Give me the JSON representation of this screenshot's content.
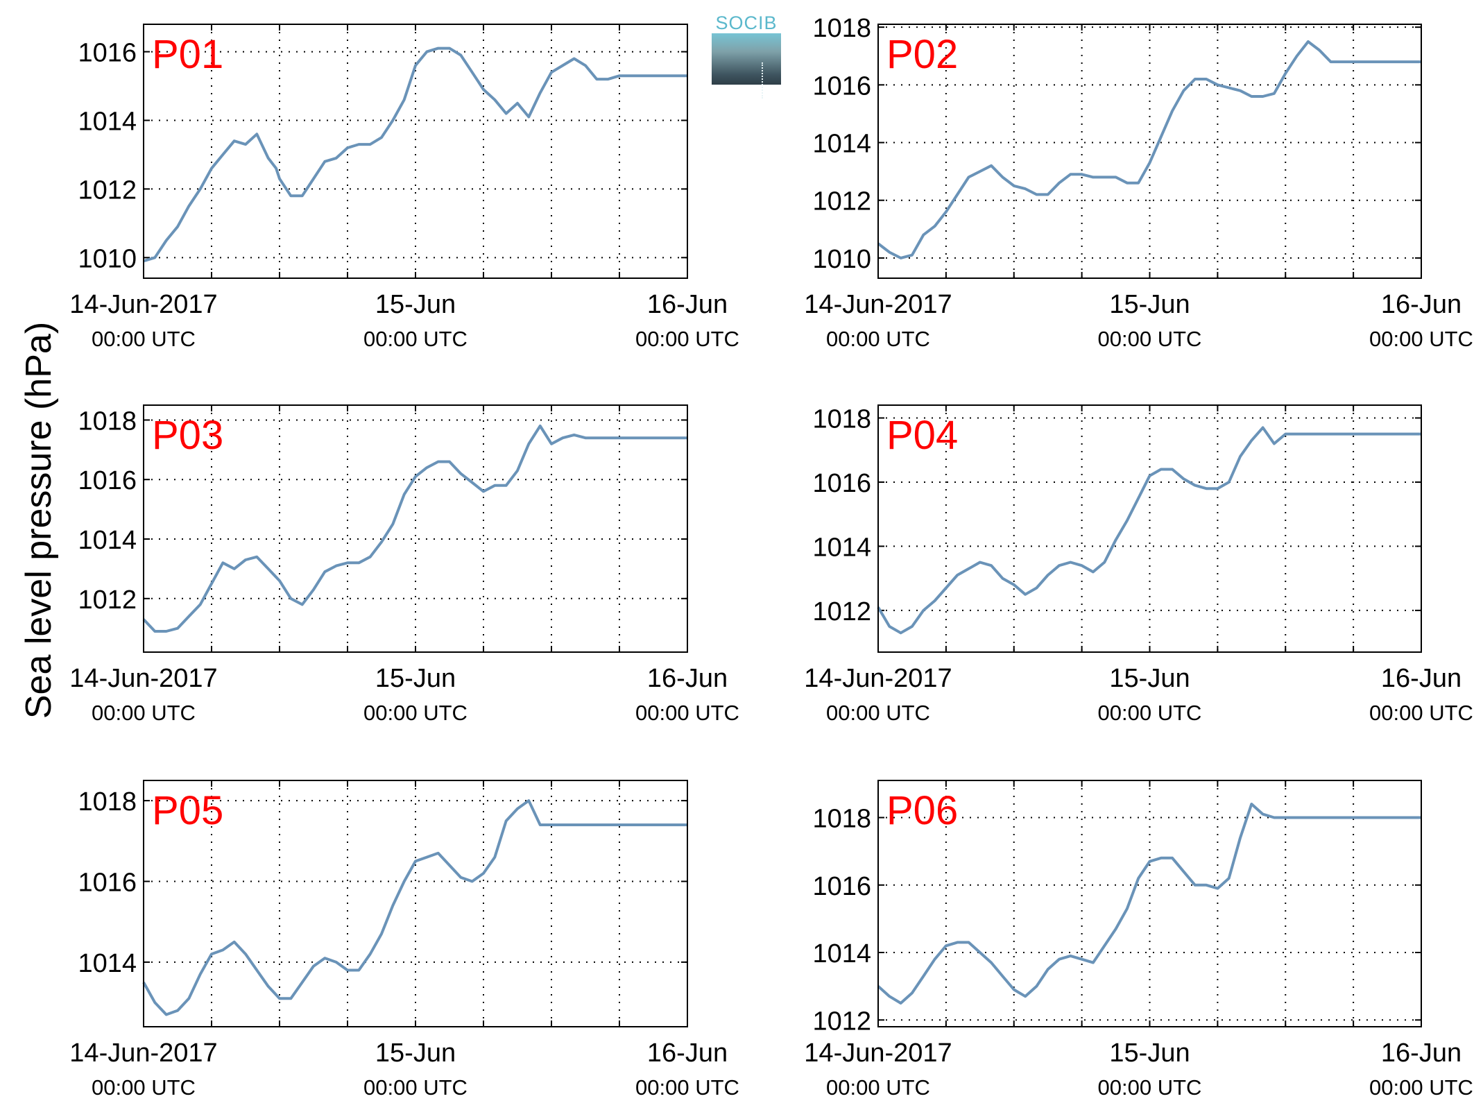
{
  "figure": {
    "ylabel": "Sea level pressure (hPa)",
    "logo_text": "SOCIB",
    "line_color": "#6a93b8",
    "label_color": "#ff0000"
  },
  "chart_data": [
    {
      "type": "line",
      "title": "P01",
      "ylim": [
        1009.4,
        1016.8
      ],
      "yticks": [
        1010,
        1012,
        1014,
        1016
      ],
      "x_range_hours": [
        0,
        48
      ],
      "grid": true,
      "xticks": [
        {
          "top": "14-Jun-2017",
          "bottom": "00:00 UTC"
        },
        {
          "top": "15-Jun",
          "bottom": "00:00 UTC"
        },
        {
          "top": "16-Jun",
          "bottom": "00:00 UTC"
        }
      ],
      "series": [
        {
          "x": [
            0,
            1,
            2,
            3,
            4,
            5,
            6,
            7,
            8,
            9,
            10,
            11,
            11.7,
            12,
            13,
            14,
            15,
            16,
            17,
            18,
            19,
            20,
            21,
            22,
            23,
            24,
            25,
            26,
            27,
            28,
            29,
            30,
            31,
            32,
            33,
            34,
            35,
            36,
            37,
            38,
            39,
            40,
            41,
            42,
            43,
            44,
            45,
            46,
            47,
            48
          ],
          "y": [
            1009.9,
            1010.0,
            1010.5,
            1010.9,
            1011.5,
            1012.0,
            1012.6,
            1013.0,
            1013.4,
            1013.3,
            1013.6,
            1012.9,
            1012.6,
            1012.3,
            1011.8,
            1011.8,
            1012.3,
            1012.8,
            1012.9,
            1013.2,
            1013.3,
            1013.3,
            1013.5,
            1014.0,
            1014.6,
            1015.6,
            1016.0,
            1016.1,
            1016.1,
            1015.9,
            1015.4,
            1014.9,
            1014.6,
            1014.2,
            1014.5,
            1014.1,
            1014.8,
            1015.4,
            1015.6,
            1015.8,
            1015.6,
            1015.2,
            1015.2,
            1015.3,
            1015.3,
            1015.3,
            1015.3,
            1015.3,
            1015.3,
            1015.3
          ]
        }
      ]
    },
    {
      "type": "line",
      "title": "P02",
      "ylim": [
        1009.3,
        1018.1
      ],
      "yticks": [
        1010,
        1012,
        1014,
        1016,
        1018
      ],
      "x_range_hours": [
        0,
        48
      ],
      "grid": true,
      "xticks": [
        {
          "top": "14-Jun-2017",
          "bottom": "00:00 UTC"
        },
        {
          "top": "15-Jun",
          "bottom": "00:00 UTC"
        },
        {
          "top": "16-Jun",
          "bottom": "00:00 UTC"
        }
      ],
      "series": [
        {
          "x": [
            0,
            1,
            2,
            3,
            4,
            5,
            6,
            7,
            8,
            9,
            10,
            11,
            12,
            13,
            14,
            15,
            16,
            17,
            18,
            19,
            20,
            21,
            22,
            23,
            24,
            25,
            26,
            27,
            28,
            29,
            30,
            31,
            32,
            33,
            34,
            35,
            36,
            37,
            38,
            39,
            40,
            41,
            42,
            43,
            44,
            45,
            46,
            47,
            48
          ],
          "y": [
            1010.5,
            1010.2,
            1010.0,
            1010.1,
            1010.8,
            1011.1,
            1011.6,
            1012.2,
            1012.8,
            1013.0,
            1013.2,
            1012.8,
            1012.5,
            1012.4,
            1012.2,
            1012.2,
            1012.6,
            1012.9,
            1012.9,
            1012.8,
            1012.8,
            1012.8,
            1012.6,
            1012.6,
            1013.3,
            1014.2,
            1015.1,
            1015.8,
            1016.2,
            1016.2,
            1016.0,
            1015.9,
            1015.8,
            1015.6,
            1015.6,
            1015.7,
            1016.4,
            1017.0,
            1017.5,
            1017.2,
            1016.8,
            1016.8,
            1016.8,
            1016.8,
            1016.8,
            1016.8,
            1016.8,
            1016.8,
            1016.8
          ]
        }
      ]
    },
    {
      "type": "line",
      "title": "P03",
      "ylim": [
        1010.2,
        1018.5
      ],
      "yticks": [
        1012,
        1014,
        1016,
        1018
      ],
      "x_range_hours": [
        0,
        48
      ],
      "grid": true,
      "xticks": [
        {
          "top": "14-Jun-2017",
          "bottom": "00:00 UTC"
        },
        {
          "top": "15-Jun",
          "bottom": "00:00 UTC"
        },
        {
          "top": "16-Jun",
          "bottom": "00:00 UTC"
        }
      ],
      "series": [
        {
          "x": [
            0,
            1,
            2,
            3,
            4,
            5,
            6,
            7,
            8,
            9,
            10,
            11,
            12,
            13,
            14,
            15,
            16,
            17,
            18,
            19,
            20,
            21,
            22,
            23,
            24,
            25,
            26,
            27,
            28,
            29,
            30,
            31,
            32,
            33,
            34,
            35,
            36,
            37,
            38,
            39,
            40,
            41,
            42,
            43,
            44,
            45,
            46,
            47,
            48
          ],
          "y": [
            1011.3,
            1010.9,
            1010.9,
            1011.0,
            1011.4,
            1011.8,
            1012.5,
            1013.2,
            1013.0,
            1013.3,
            1013.4,
            1013.0,
            1012.6,
            1012.0,
            1011.8,
            1012.3,
            1012.9,
            1013.1,
            1013.2,
            1013.2,
            1013.4,
            1013.9,
            1014.5,
            1015.5,
            1016.1,
            1016.4,
            1016.6,
            1016.6,
            1016.2,
            1015.9,
            1015.6,
            1015.8,
            1015.8,
            1016.3,
            1017.2,
            1017.8,
            1017.2,
            1017.4,
            1017.5,
            1017.4,
            1017.4,
            1017.4,
            1017.4,
            1017.4,
            1017.4,
            1017.4,
            1017.4,
            1017.4,
            1017.4
          ]
        }
      ]
    },
    {
      "type": "line",
      "title": "P04",
      "ylim": [
        1010.7,
        1018.4
      ],
      "yticks": [
        1012,
        1014,
        1016,
        1018
      ],
      "x_range_hours": [
        0,
        48
      ],
      "grid": true,
      "xticks": [
        {
          "top": "14-Jun-2017",
          "bottom": "00:00 UTC"
        },
        {
          "top": "15-Jun",
          "bottom": "00:00 UTC"
        },
        {
          "top": "16-Jun",
          "bottom": "00:00 UTC"
        }
      ],
      "series": [
        {
          "x": [
            0,
            1,
            2,
            3,
            4,
            5,
            6,
            7,
            8,
            9,
            10,
            11,
            12,
            13,
            14,
            15,
            16,
            17,
            18,
            19,
            20,
            21,
            22,
            23,
            24,
            25,
            26,
            27,
            28,
            29,
            30,
            31,
            32,
            33,
            34,
            35,
            36,
            37,
            38,
            39,
            40,
            41,
            42,
            43,
            44,
            45,
            46,
            47,
            48
          ],
          "y": [
            1012.1,
            1011.5,
            1011.3,
            1011.5,
            1012.0,
            1012.3,
            1012.7,
            1013.1,
            1013.3,
            1013.5,
            1013.4,
            1013.0,
            1012.8,
            1012.5,
            1012.7,
            1013.1,
            1013.4,
            1013.5,
            1013.4,
            1013.2,
            1013.5,
            1014.2,
            1014.8,
            1015.5,
            1016.2,
            1016.4,
            1016.4,
            1016.1,
            1015.9,
            1015.8,
            1015.8,
            1016.0,
            1016.8,
            1017.3,
            1017.7,
            1017.2,
            1017.5,
            1017.5,
            1017.5,
            1017.5,
            1017.5,
            1017.5,
            1017.5,
            1017.5,
            1017.5,
            1017.5,
            1017.5,
            1017.5,
            1017.5
          ]
        }
      ]
    },
    {
      "type": "line",
      "title": "P05",
      "ylim": [
        1012.4,
        1018.5
      ],
      "yticks": [
        1014,
        1016,
        1018
      ],
      "x_range_hours": [
        0,
        48
      ],
      "grid": true,
      "xticks": [
        {
          "top": "14-Jun-2017",
          "bottom": "00:00 UTC"
        },
        {
          "top": "15-Jun",
          "bottom": "00:00 UTC"
        },
        {
          "top": "16-Jun",
          "bottom": "00:00 UTC"
        }
      ],
      "series": [
        {
          "x": [
            0,
            1,
            2,
            3,
            4,
            5,
            6,
            7,
            8,
            9,
            10,
            11,
            12,
            13,
            14,
            15,
            16,
            17,
            18,
            19,
            20,
            21,
            22,
            23,
            24,
            25,
            26,
            27,
            28,
            29,
            30,
            31,
            32,
            33,
            34,
            35,
            36,
            37,
            38,
            39,
            40,
            41,
            42,
            43,
            44,
            45,
            46,
            47,
            48
          ],
          "y": [
            1013.5,
            1013.0,
            1012.7,
            1012.8,
            1013.1,
            1013.7,
            1014.2,
            1014.3,
            1014.5,
            1014.2,
            1013.8,
            1013.4,
            1013.1,
            1013.1,
            1013.5,
            1013.9,
            1014.1,
            1014.0,
            1013.8,
            1013.8,
            1014.2,
            1014.7,
            1015.4,
            1016.0,
            1016.5,
            1016.6,
            1016.7,
            1016.4,
            1016.1,
            1016.0,
            1016.2,
            1016.6,
            1017.5,
            1017.8,
            1018.0,
            1017.4,
            1017.4,
            1017.4,
            1017.4,
            1017.4,
            1017.4,
            1017.4,
            1017.4,
            1017.4,
            1017.4,
            1017.4,
            1017.4,
            1017.4,
            1017.4
          ]
        }
      ]
    },
    {
      "type": "line",
      "title": "P06",
      "ylim": [
        1011.8,
        1019.1
      ],
      "yticks": [
        1012,
        1014,
        1016,
        1018
      ],
      "x_range_hours": [
        0,
        48
      ],
      "grid": true,
      "xticks": [
        {
          "top": "14-Jun-2017",
          "bottom": "00:00 UTC"
        },
        {
          "top": "15-Jun",
          "bottom": "00:00 UTC"
        },
        {
          "top": "16-Jun",
          "bottom": "00:00 UTC"
        }
      ],
      "series": [
        {
          "x": [
            0,
            1,
            2,
            3,
            4,
            5,
            6,
            7,
            8,
            9,
            10,
            11,
            12,
            13,
            14,
            15,
            16,
            17,
            18,
            19,
            20,
            21,
            22,
            23,
            24,
            25,
            26,
            27,
            28,
            29,
            30,
            31,
            32,
            33,
            34,
            35,
            36,
            37,
            38,
            39,
            40,
            41,
            42,
            43,
            44,
            45,
            46,
            47,
            48
          ],
          "y": [
            1013.0,
            1012.7,
            1012.5,
            1012.8,
            1013.3,
            1013.8,
            1014.2,
            1014.3,
            1014.3,
            1014.0,
            1013.7,
            1013.3,
            1012.9,
            1012.7,
            1013.0,
            1013.5,
            1013.8,
            1013.9,
            1013.8,
            1013.7,
            1014.2,
            1014.7,
            1015.3,
            1016.2,
            1016.7,
            1016.8,
            1016.8,
            1016.4,
            1016.0,
            1016.0,
            1015.9,
            1016.2,
            1017.4,
            1018.4,
            1018.1,
            1018.0,
            1018.0,
            1018.0,
            1018.0,
            1018.0,
            1018.0,
            1018.0,
            1018.0,
            1018.0,
            1018.0,
            1018.0,
            1018.0,
            1018.0,
            1018.0
          ]
        }
      ]
    }
  ]
}
